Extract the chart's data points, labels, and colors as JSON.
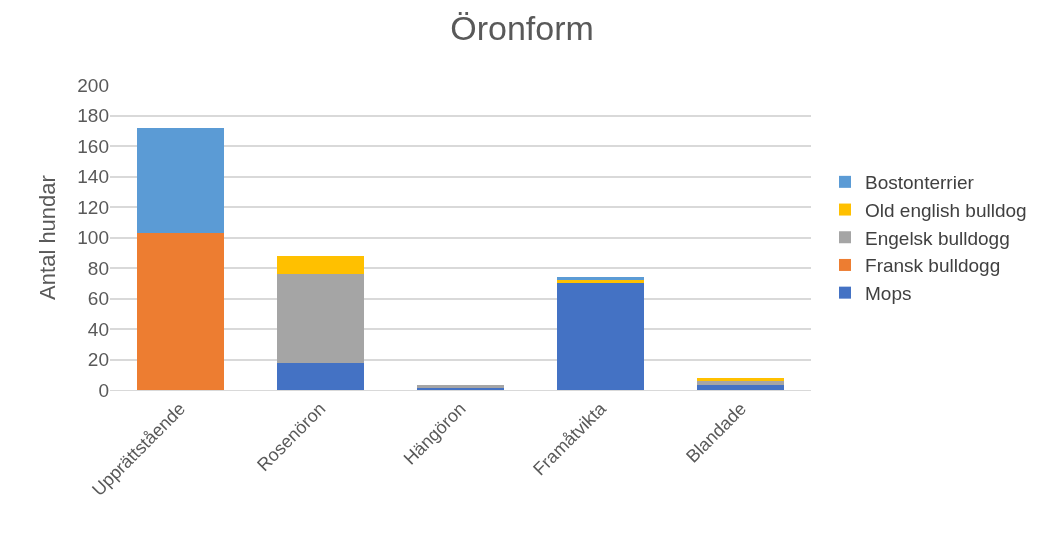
{
  "chart_data": {
    "type": "bar",
    "title": "Öronform",
    "ylabel": "Antal hundar",
    "stacked": true,
    "categories": [
      "Upprättstående",
      "Rosenöron",
      "Hängöron",
      "Framåtvikta",
      "Blandade"
    ],
    "series": [
      {
        "name": "Mops",
        "color": "#4472c4",
        "values": [
          0,
          18,
          1,
          70,
          3
        ]
      },
      {
        "name": "Fransk bulldogg",
        "color": "#ed7d31",
        "values": [
          103,
          0,
          0,
          0,
          0
        ]
      },
      {
        "name": "Engelsk bulldogg",
        "color": "#a5a5a5",
        "values": [
          0,
          58,
          2,
          0,
          3
        ]
      },
      {
        "name": "Old english bulldog",
        "color": "#ffc000",
        "values": [
          0,
          12,
          0,
          2,
          2
        ]
      },
      {
        "name": "Bostonterrier",
        "color": "#5b9bd5",
        "values": [
          69,
          0,
          0,
          2,
          0
        ]
      }
    ],
    "ylim": [
      0,
      200
    ],
    "yticks": [
      0,
      20,
      40,
      60,
      80,
      100,
      120,
      140,
      160,
      180,
      200
    ],
    "grid": "y",
    "legend": "right"
  }
}
